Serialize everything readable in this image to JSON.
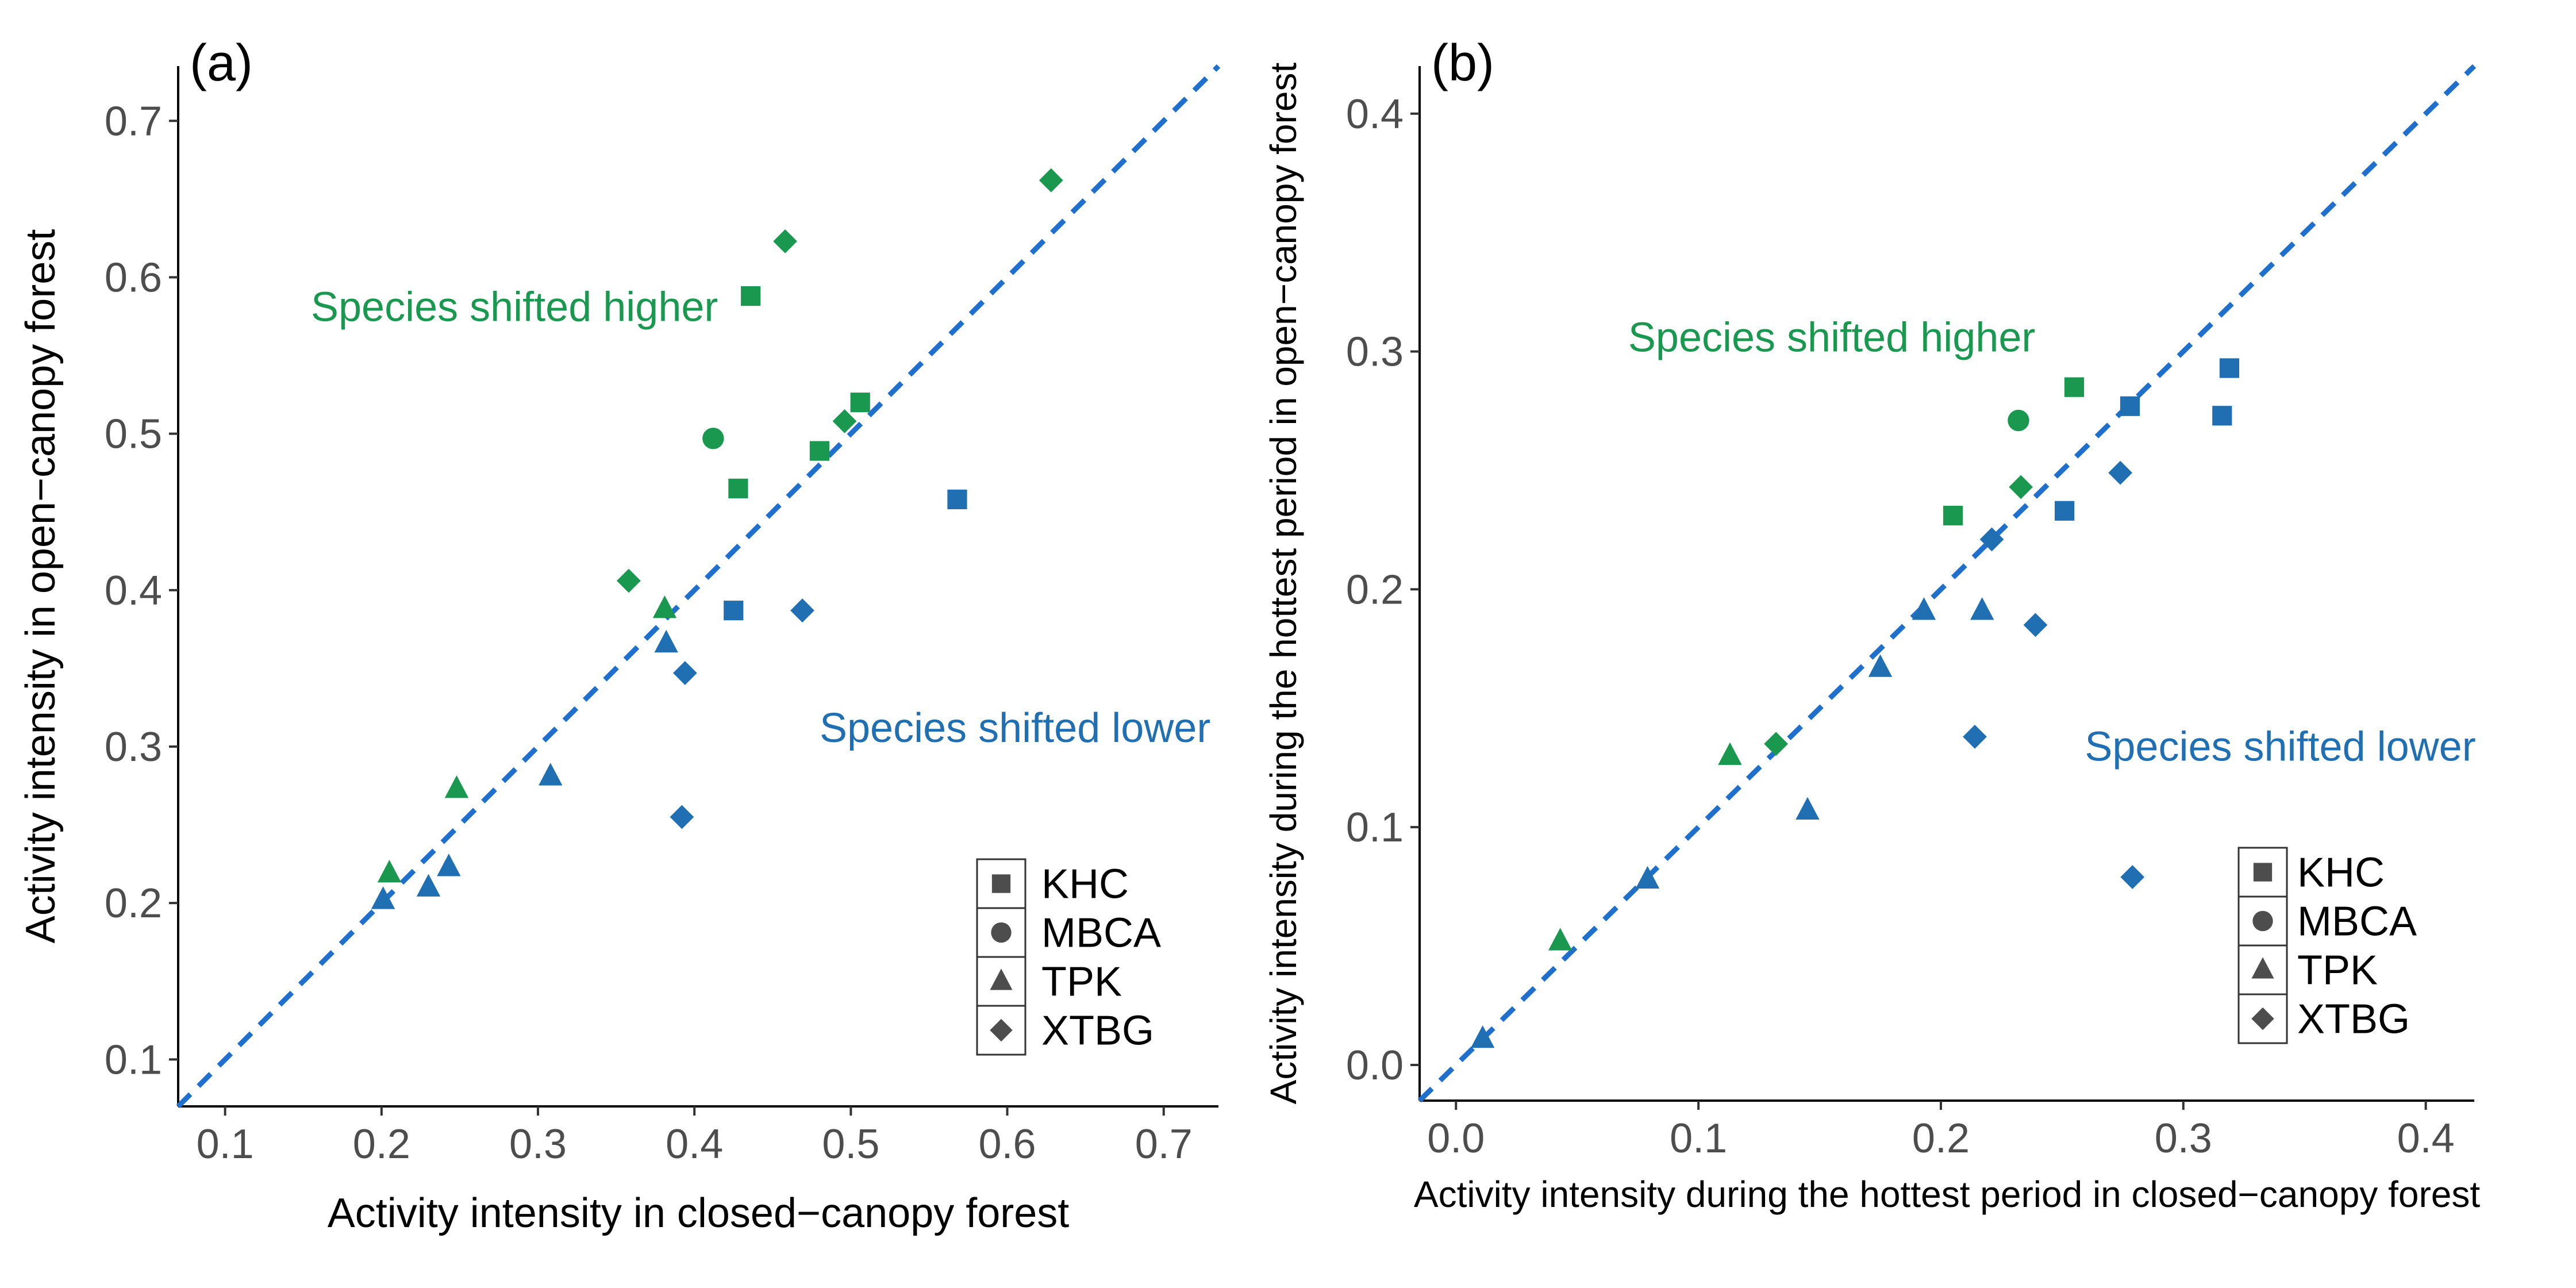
{
  "colors": {
    "green": "#1a9850",
    "blue": "#1f6fb2",
    "diag": "#1f6fcc",
    "axis": "#000000",
    "tick_text": "#4d4d4d",
    "legend_marker": "#4d4d4d"
  },
  "legend": {
    "items": [
      {
        "label": "KHC",
        "shape": "square-icon"
      },
      {
        "label": "MBCA",
        "shape": "circle-icon"
      },
      {
        "label": "TPK",
        "shape": "triangle-icon"
      },
      {
        "label": "XTBG",
        "shape": "diamond-icon"
      }
    ]
  },
  "chart_data": [
    {
      "type": "scatter",
      "panel_label": "(a)",
      "xlabel": "Activity intensity in closed−canopy forest",
      "ylabel": "Activity intensity in open−canopy forest",
      "xlim": [
        0.07,
        0.735
      ],
      "ylim": [
        0.07,
        0.735
      ],
      "xticks": [
        0.1,
        0.2,
        0.3,
        0.4,
        0.5,
        0.6,
        0.7
      ],
      "yticks": [
        0.1,
        0.2,
        0.3,
        0.4,
        0.5,
        0.6,
        0.7
      ],
      "tick_format": 1,
      "reference_line": "y = x (dashed)",
      "annotations": [
        {
          "text": "Species shifted higher",
          "color": "green",
          "x": 0.285,
          "y": 0.572
        },
        {
          "text": "Species shifted lower",
          "color": "blue",
          "x": 0.605,
          "y": 0.303
        }
      ],
      "points": [
        {
          "site": "KHC",
          "color": "green",
          "x": 0.436,
          "y": 0.588
        },
        {
          "site": "KHC",
          "color": "green",
          "x": 0.506,
          "y": 0.52
        },
        {
          "site": "KHC",
          "color": "green",
          "x": 0.48,
          "y": 0.489
        },
        {
          "site": "KHC",
          "color": "green",
          "x": 0.428,
          "y": 0.465
        },
        {
          "site": "KHC",
          "color": "blue",
          "x": 0.568,
          "y": 0.458
        },
        {
          "site": "KHC",
          "color": "blue",
          "x": 0.425,
          "y": 0.387
        },
        {
          "site": "MBCA",
          "color": "green",
          "x": 0.412,
          "y": 0.497
        },
        {
          "site": "XTBG",
          "color": "green",
          "x": 0.628,
          "y": 0.662
        },
        {
          "site": "XTBG",
          "color": "green",
          "x": 0.458,
          "y": 0.623
        },
        {
          "site": "XTBG",
          "color": "green",
          "x": 0.496,
          "y": 0.508
        },
        {
          "site": "XTBG",
          "color": "green",
          "x": 0.358,
          "y": 0.406
        },
        {
          "site": "XTBG",
          "color": "blue",
          "x": 0.469,
          "y": 0.387
        },
        {
          "site": "XTBG",
          "color": "blue",
          "x": 0.394,
          "y": 0.347
        },
        {
          "site": "XTBG",
          "color": "blue",
          "x": 0.392,
          "y": 0.255
        },
        {
          "site": "TPK",
          "color": "green",
          "x": 0.381,
          "y": 0.388
        },
        {
          "site": "TPK",
          "color": "green",
          "x": 0.248,
          "y": 0.273
        },
        {
          "site": "TPK",
          "color": "green",
          "x": 0.205,
          "y": 0.219
        },
        {
          "site": "TPK",
          "color": "blue",
          "x": 0.382,
          "y": 0.366
        },
        {
          "site": "TPK",
          "color": "blue",
          "x": 0.308,
          "y": 0.281
        },
        {
          "site": "TPK",
          "color": "blue",
          "x": 0.243,
          "y": 0.223
        },
        {
          "site": "TPK",
          "color": "blue",
          "x": 0.23,
          "y": 0.21
        },
        {
          "site": "TPK",
          "color": "blue",
          "x": 0.201,
          "y": 0.202
        }
      ]
    },
    {
      "type": "scatter",
      "panel_label": "(b)",
      "xlabel": "Activity intensity during the hottest period in closed−canopy forest",
      "ylabel": "Activity intensity during the hottest period in open−canopy forest",
      "xlim": [
        -0.015,
        0.42
      ],
      "ylim": [
        -0.015,
        0.42
      ],
      "xticks": [
        0.0,
        0.1,
        0.2,
        0.3,
        0.4
      ],
      "yticks": [
        0.0,
        0.1,
        0.2,
        0.3,
        0.4
      ],
      "tick_format": 1,
      "reference_line": "y = x (dashed)",
      "annotations": [
        {
          "text": "Species shifted higher",
          "color": "green",
          "x": 0.155,
          "y": 0.3
        },
        {
          "text": "Species shifted lower",
          "color": "blue",
          "x": 0.34,
          "y": 0.128
        }
      ],
      "points": [
        {
          "site": "KHC",
          "color": "green",
          "x": 0.255,
          "y": 0.285
        },
        {
          "site": "KHC",
          "color": "green",
          "x": 0.205,
          "y": 0.231
        },
        {
          "site": "KHC",
          "color": "blue",
          "x": 0.319,
          "y": 0.293
        },
        {
          "site": "KHC",
          "color": "blue",
          "x": 0.278,
          "y": 0.277
        },
        {
          "site": "KHC",
          "color": "blue",
          "x": 0.316,
          "y": 0.273
        },
        {
          "site": "KHC",
          "color": "blue",
          "x": 0.251,
          "y": 0.233
        },
        {
          "site": "MBCA",
          "color": "green",
          "x": 0.232,
          "y": 0.271
        },
        {
          "site": "XTBG",
          "color": "green",
          "x": 0.233,
          "y": 0.243
        },
        {
          "site": "XTBG",
          "color": "green",
          "x": 0.132,
          "y": 0.135
        },
        {
          "site": "XTBG",
          "color": "blue",
          "x": 0.274,
          "y": 0.249
        },
        {
          "site": "XTBG",
          "color": "blue",
          "x": 0.221,
          "y": 0.221
        },
        {
          "site": "XTBG",
          "color": "blue",
          "x": 0.239,
          "y": 0.185
        },
        {
          "site": "XTBG",
          "color": "blue",
          "x": 0.214,
          "y": 0.138
        },
        {
          "site": "XTBG",
          "color": "blue",
          "x": 0.279,
          "y": 0.079
        },
        {
          "site": "TPK",
          "color": "green",
          "x": 0.113,
          "y": 0.13
        },
        {
          "site": "TPK",
          "color": "green",
          "x": 0.043,
          "y": 0.052
        },
        {
          "site": "TPK",
          "color": "blue",
          "x": 0.193,
          "y": 0.191
        },
        {
          "site": "TPK",
          "color": "blue",
          "x": 0.217,
          "y": 0.191
        },
        {
          "site": "TPK",
          "color": "blue",
          "x": 0.175,
          "y": 0.167
        },
        {
          "site": "TPK",
          "color": "blue",
          "x": 0.145,
          "y": 0.107
        },
        {
          "site": "TPK",
          "color": "blue",
          "x": 0.079,
          "y": 0.078
        },
        {
          "site": "TPK",
          "color": "blue",
          "x": 0.011,
          "y": 0.011
        }
      ]
    }
  ]
}
